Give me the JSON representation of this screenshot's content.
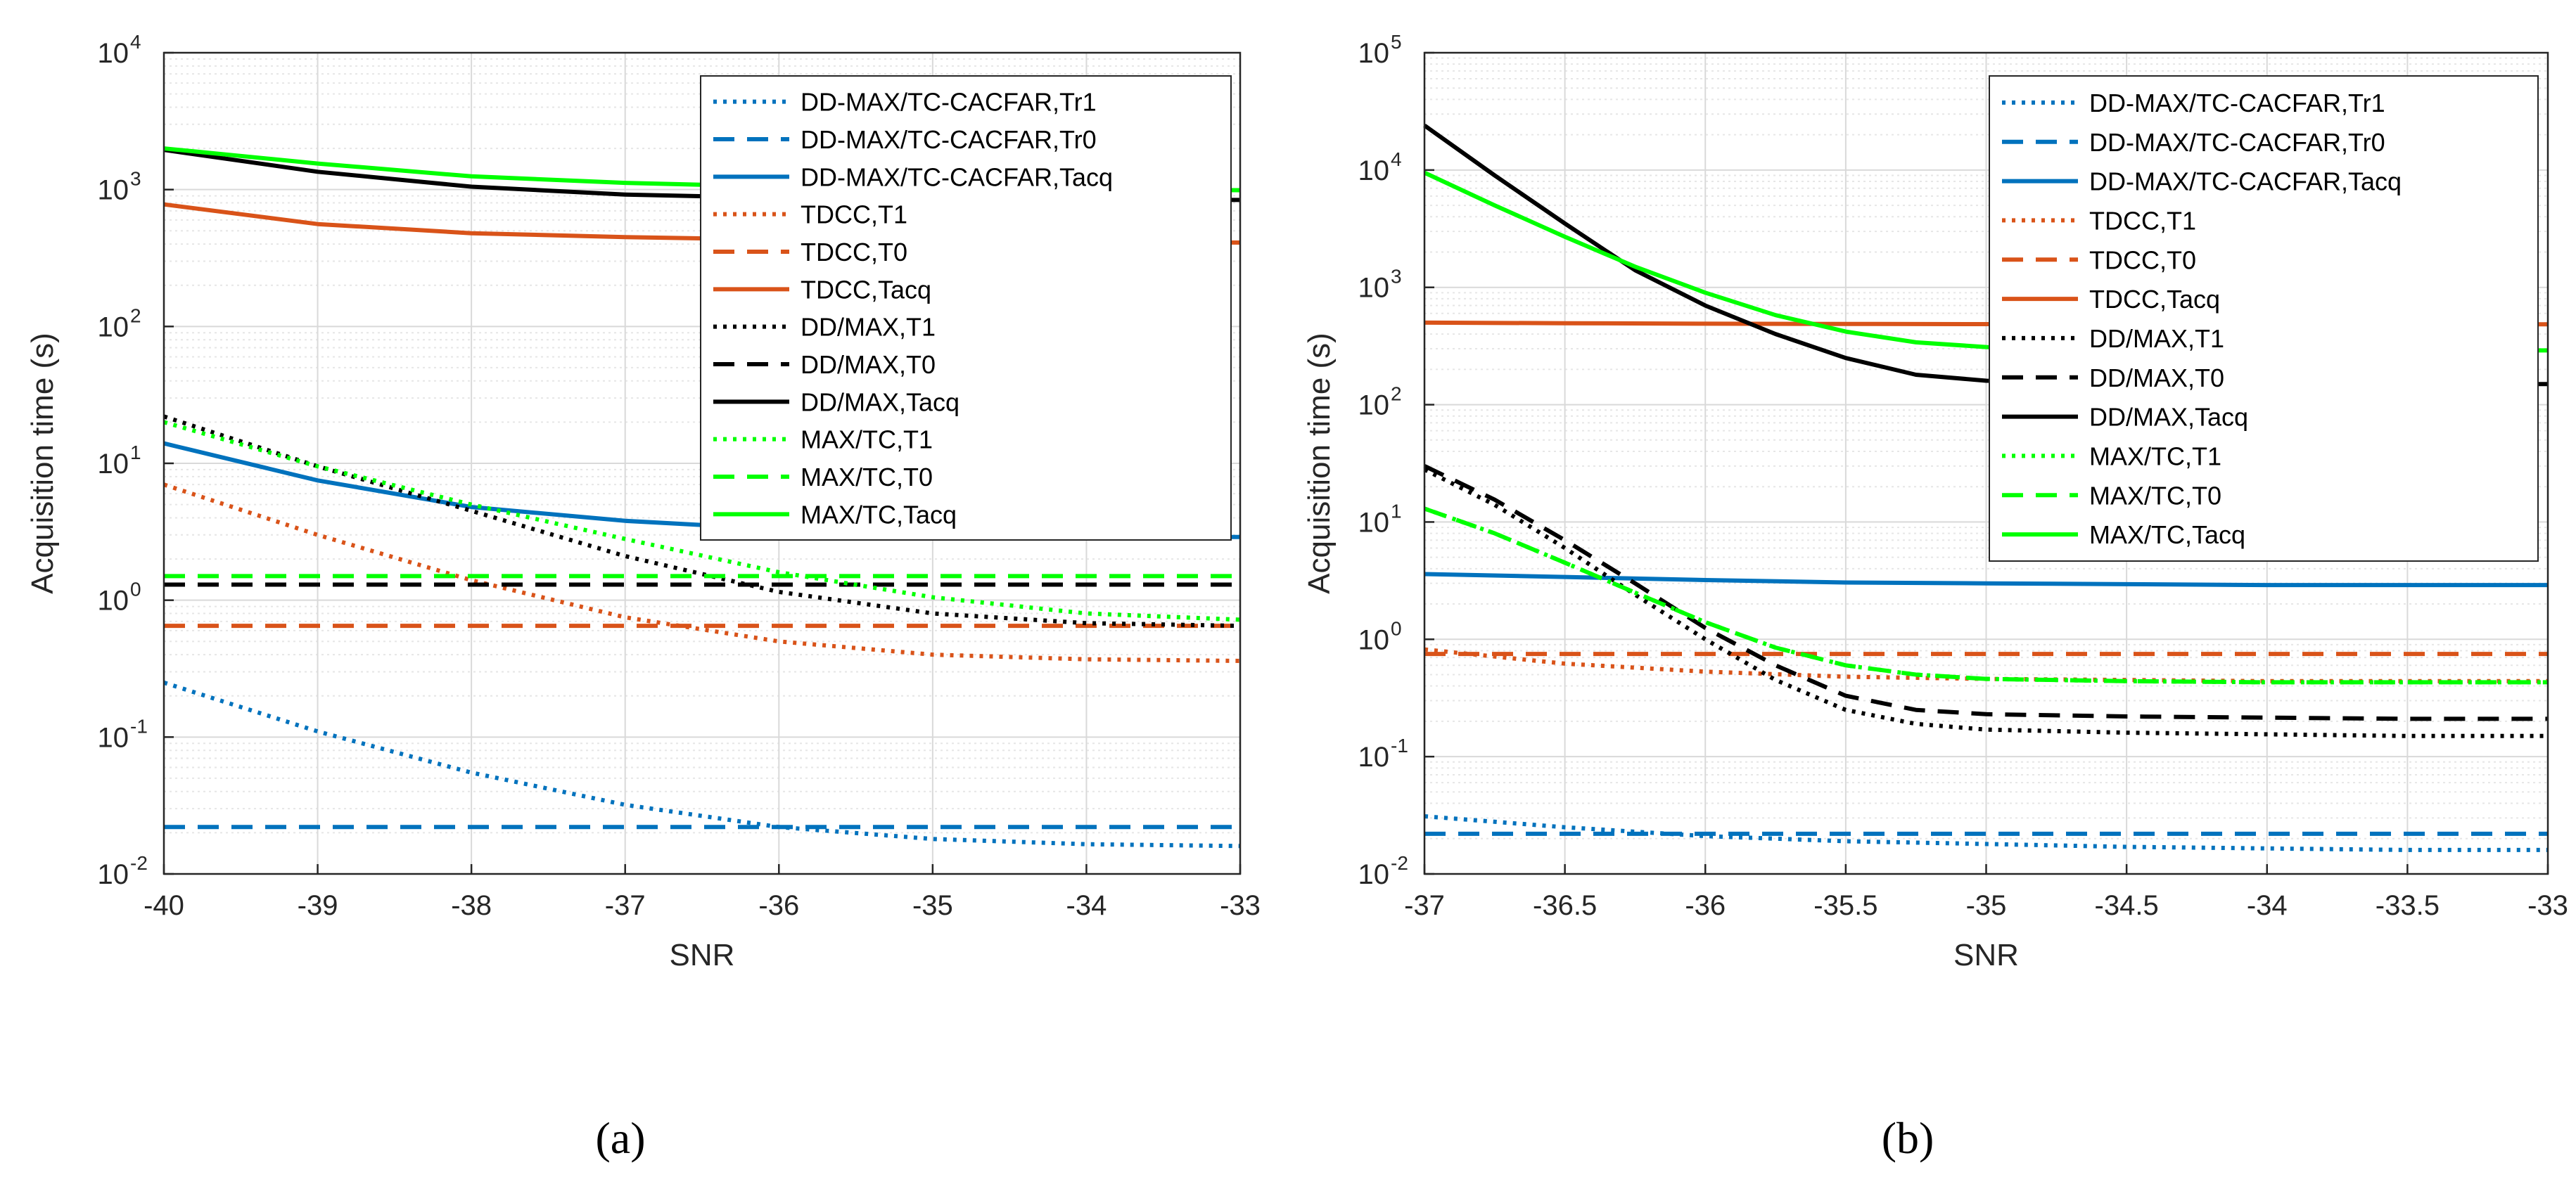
{
  "colors": {
    "blue": "#0072BD",
    "orange": "#D95319",
    "black": "#000000",
    "green": "#00FF00",
    "grid": "#d9d9d9",
    "axis": "#262626"
  },
  "chart_data": [
    {
      "type": "line",
      "panel_label": "(a)",
      "xlabel": "SNR",
      "ylabel": "Acquisition time (s)",
      "y_scale": "log",
      "xlim": [
        -40,
        -33
      ],
      "ylim": [
        0.01,
        10000
      ],
      "x_ticks": [
        -40,
        -39,
        -38,
        -37,
        -36,
        -35,
        -34,
        -33
      ],
      "x_tick_labels": [
        "-40",
        "-39",
        "-38",
        "-37",
        "-36",
        "-35",
        "-34",
        "-33"
      ],
      "y_ticks": [
        0.01,
        0.1,
        1,
        10,
        100,
        1000,
        10000
      ],
      "y_tick_labels": [
        [
          "10",
          "-2"
        ],
        [
          "10",
          "-1"
        ],
        [
          "10",
          "0"
        ],
        [
          "10",
          "1"
        ],
        [
          "10",
          "2"
        ],
        [
          "10",
          "3"
        ],
        [
          "10",
          "4"
        ]
      ],
      "grid": true,
      "legend_position": "top-right",
      "series": [
        {
          "name": "DD-MAX/TC-CACFAR,Tr1",
          "color": "blue",
          "style": "dotted",
          "x": [
            -40,
            -39,
            -38,
            -37,
            -36,
            -35,
            -34,
            -33
          ],
          "y": [
            0.25,
            0.11,
            0.055,
            0.032,
            0.022,
            0.018,
            0.0165,
            0.016
          ]
        },
        {
          "name": "DD-MAX/TC-CACFAR,Tr0",
          "color": "blue",
          "style": "dashed",
          "x": [
            -40,
            -33
          ],
          "y": [
            0.022,
            0.022
          ]
        },
        {
          "name": "DD-MAX/TC-CACFAR,Tacq",
          "color": "blue",
          "style": "solid",
          "x": [
            -40,
            -39,
            -38,
            -37,
            -36,
            -35,
            -34,
            -33
          ],
          "y": [
            14,
            7.5,
            4.8,
            3.8,
            3.3,
            3.0,
            2.9,
            2.9
          ]
        },
        {
          "name": "TDCC,T1",
          "color": "orange",
          "style": "dotted",
          "x": [
            -40,
            -39,
            -38,
            -37,
            -36,
            -35,
            -34,
            -33
          ],
          "y": [
            7.0,
            3.0,
            1.4,
            0.75,
            0.5,
            0.4,
            0.37,
            0.36
          ]
        },
        {
          "name": "TDCC,T0",
          "color": "orange",
          "style": "dashed",
          "x": [
            -40,
            -33
          ],
          "y": [
            0.65,
            0.65
          ]
        },
        {
          "name": "TDCC,Tacq",
          "color": "orange",
          "style": "solid",
          "x": [
            -40,
            -39,
            -38,
            -37,
            -36,
            -35,
            -34,
            -33
          ],
          "y": [
            780,
            560,
            480,
            450,
            430,
            420,
            415,
            410
          ]
        },
        {
          "name": "DD/MAX,T1",
          "color": "black",
          "style": "dotted",
          "x": [
            -40,
            -39,
            -38,
            -37,
            -36,
            -35,
            -34,
            -33
          ],
          "y": [
            22,
            9.5,
            4.5,
            2.1,
            1.15,
            0.8,
            0.68,
            0.65
          ]
        },
        {
          "name": "DD/MAX,T0",
          "color": "black",
          "style": "dashed",
          "x": [
            -40,
            -33
          ],
          "y": [
            1.3,
            1.3
          ]
        },
        {
          "name": "DD/MAX,Tacq",
          "color": "black",
          "style": "solid",
          "x": [
            -40,
            -39,
            -38,
            -37,
            -36,
            -35,
            -34,
            -33
          ],
          "y": [
            1950,
            1350,
            1050,
            920,
            870,
            850,
            845,
            840
          ]
        },
        {
          "name": "MAX/TC,T1",
          "color": "green",
          "style": "dotted",
          "x": [
            -40,
            -39,
            -38,
            -37,
            -36,
            -35,
            -34,
            -33
          ],
          "y": [
            20,
            9.5,
            5.0,
            2.8,
            1.6,
            1.05,
            0.8,
            0.72
          ]
        },
        {
          "name": "MAX/TC,T0",
          "color": "green",
          "style": "dashed",
          "x": [
            -40,
            -33
          ],
          "y": [
            1.5,
            1.5
          ]
        },
        {
          "name": "MAX/TC,Tacq",
          "color": "green",
          "style": "solid",
          "x": [
            -40,
            -39,
            -38,
            -37,
            -36,
            -35,
            -34,
            -33
          ],
          "y": [
            2000,
            1550,
            1250,
            1120,
            1050,
            1020,
            1000,
            990
          ]
        }
      ]
    },
    {
      "type": "line",
      "panel_label": "(b)",
      "xlabel": "SNR",
      "ylabel": "Acquisition time (s)",
      "y_scale": "log",
      "xlim": [
        -37,
        -33
      ],
      "ylim": [
        0.01,
        100000
      ],
      "x_ticks": [
        -37,
        -36.5,
        -36,
        -35.5,
        -35,
        -34.5,
        -34,
        -33.5,
        -33
      ],
      "x_tick_labels": [
        "-37",
        "-36.5",
        "-36",
        "-35.5",
        "-35",
        "-34.5",
        "-34",
        "-33.5",
        "-33"
      ],
      "y_ticks": [
        0.01,
        0.1,
        1,
        10,
        100,
        1000,
        10000,
        100000
      ],
      "y_tick_labels": [
        [
          "10",
          "-2"
        ],
        [
          "10",
          "-1"
        ],
        [
          "10",
          "0"
        ],
        [
          "10",
          "1"
        ],
        [
          "10",
          "2"
        ],
        [
          "10",
          "3"
        ],
        [
          "10",
          "4"
        ],
        [
          "10",
          "5"
        ]
      ],
      "grid": true,
      "legend_position": "top-right",
      "series": [
        {
          "name": "DD-MAX/TC-CACFAR,Tr1",
          "color": "blue",
          "style": "dotted",
          "x": [
            -37,
            -36.5,
            -36,
            -35.5,
            -35,
            -34.5,
            -34,
            -33.5,
            -33
          ],
          "y": [
            0.031,
            0.025,
            0.021,
            0.019,
            0.018,
            0.017,
            0.0165,
            0.016,
            0.016
          ]
        },
        {
          "name": "DD-MAX/TC-CACFAR,Tr0",
          "color": "blue",
          "style": "dashed",
          "x": [
            -37,
            -33
          ],
          "y": [
            0.022,
            0.022
          ]
        },
        {
          "name": "DD-MAX/TC-CACFAR,Tacq",
          "color": "blue",
          "style": "solid",
          "x": [
            -37,
            -36.5,
            -36,
            -35.5,
            -35,
            -34.5,
            -34,
            -33.5,
            -33
          ],
          "y": [
            3.6,
            3.4,
            3.2,
            3.05,
            3.0,
            2.95,
            2.9,
            2.9,
            2.9
          ]
        },
        {
          "name": "TDCC,T1",
          "color": "orange",
          "style": "dotted",
          "x": [
            -37,
            -36.5,
            -36,
            -35.5,
            -35,
            -34.5,
            -34,
            -33.5,
            -33
          ],
          "y": [
            0.82,
            0.62,
            0.53,
            0.48,
            0.46,
            0.45,
            0.44,
            0.44,
            0.44
          ]
        },
        {
          "name": "TDCC,T0",
          "color": "orange",
          "style": "dashed",
          "x": [
            -37,
            -33
          ],
          "y": [
            0.75,
            0.75
          ]
        },
        {
          "name": "TDCC,Tacq",
          "color": "orange",
          "style": "solid",
          "x": [
            -37,
            -36.5,
            -36,
            -35.5,
            -35,
            -34.5,
            -34,
            -33.5,
            -33
          ],
          "y": [
            500,
            495,
            490,
            488,
            486,
            485,
            484,
            484,
            484
          ]
        },
        {
          "name": "DD/MAX,T1",
          "color": "black",
          "style": "dotted",
          "x": [
            -37,
            -36.75,
            -36.5,
            -36.25,
            -36,
            -35.75,
            -35.5,
            -35.25,
            -35,
            -34.5,
            -34,
            -33.5,
            -33
          ],
          "y": [
            28,
            14,
            6,
            2.4,
            1.0,
            0.45,
            0.25,
            0.19,
            0.17,
            0.16,
            0.155,
            0.15,
            0.15
          ]
        },
        {
          "name": "DD/MAX,T0",
          "color": "black",
          "style": "dashed",
          "x": [
            -37,
            -36.75,
            -36.5,
            -36.25,
            -36,
            -35.75,
            -35.5,
            -35.25,
            -35,
            -34.5,
            -34,
            -33.5,
            -33
          ],
          "y": [
            30,
            15.5,
            7,
            3,
            1.25,
            0.6,
            0.33,
            0.25,
            0.23,
            0.22,
            0.215,
            0.21,
            0.21
          ]
        },
        {
          "name": "DD/MAX,Tacq",
          "color": "black",
          "style": "solid",
          "x": [
            -37,
            -36.75,
            -36.5,
            -36.25,
            -36,
            -35.75,
            -35.5,
            -35.25,
            -35,
            -34.5,
            -34,
            -33.5,
            -33
          ],
          "y": [
            24000,
            9000,
            3500,
            1400,
            700,
            400,
            250,
            180,
            160,
            155,
            150,
            150,
            150
          ]
        },
        {
          "name": "MAX/TC,T1",
          "color": "green",
          "style": "dotted",
          "x": [
            -37,
            -36.75,
            -36.5,
            -36.25,
            -36,
            -35.75,
            -35.5,
            -35.25,
            -35,
            -34.5,
            -34,
            -33.5,
            -33
          ],
          "y": [
            13,
            8,
            4.5,
            2.5,
            1.4,
            0.85,
            0.6,
            0.5,
            0.46,
            0.44,
            0.43,
            0.43,
            0.43
          ]
        },
        {
          "name": "MAX/TC,T0",
          "color": "green",
          "style": "dashed",
          "x": [
            -37,
            -36.75,
            -36.5,
            -36.25,
            -36,
            -35.75,
            -35.5,
            -35.25,
            -35,
            -34.5,
            -34,
            -33.5,
            -33
          ],
          "y": [
            13,
            8,
            4.5,
            2.5,
            1.4,
            0.85,
            0.6,
            0.5,
            0.46,
            0.44,
            0.43,
            0.43,
            0.43
          ]
        },
        {
          "name": "MAX/TC,Tacq",
          "color": "green",
          "style": "solid",
          "x": [
            -37,
            -36.75,
            -36.5,
            -36.25,
            -36,
            -35.75,
            -35.5,
            -35.25,
            -35,
            -34.5,
            -34,
            -33.5,
            -33
          ],
          "y": [
            9500,
            5000,
            2700,
            1500,
            900,
            580,
            420,
            340,
            310,
            300,
            295,
            290,
            290
          ]
        }
      ]
    }
  ]
}
